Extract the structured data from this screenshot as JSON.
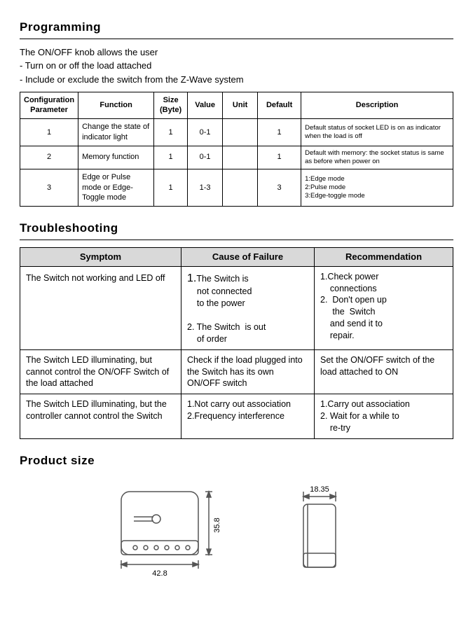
{
  "sections": {
    "programming": "Programming",
    "troubleshooting": "Troubleshooting",
    "product_size": "Product size"
  },
  "intro": {
    "line1": "The ON/OFF knob allows the user",
    "line2": "- Turn on or off the load attached",
    "line3": "- Include or exclude the switch from the Z-Wave system"
  },
  "cfg": {
    "headers": {
      "param": "Configuration Parameter",
      "function": "Function",
      "size": "Size (Byte)",
      "value": "Value",
      "unit": "Unit",
      "default": "Default",
      "description": "Description"
    },
    "rows": [
      {
        "param": "1",
        "function": "Change the state of indicator light",
        "size": "1",
        "value": "0-1",
        "unit": "",
        "default": "1",
        "description": "Default status of socket LED is on as indicator when the load is off"
      },
      {
        "param": "2",
        "function": "Memory function",
        "size": "1",
        "value": "0-1",
        "unit": "",
        "default": "1",
        "description": "Default with memory: the socket status is same as before when power on"
      },
      {
        "param": "3",
        "function": "Edge or Pulse mode or Edge-Toggle mode",
        "size": "1",
        "value": "1-3",
        "unit": "",
        "default": "3",
        "description": "1:Edge mode\n2:Pulse mode\n3:Edge-toggle mode"
      }
    ]
  },
  "trb": {
    "headers": {
      "symptom": "Symptom",
      "cause": "Cause of Failure",
      "rec": "Recommendation"
    },
    "rows": [
      {
        "symptom": "The  Switch  not working and LED off",
        "cause": "1. The Switch is not connected to the power\n\n2. The Switch  is out of order",
        "rec": "1. Check power connections\n2.  Don't open up the  Switch and send it to repair."
      },
      {
        "symptom": "The  Switch  LED illuminating, but cannot control the ON/OFF Switch of the load attached",
        "cause": "Check if the load plugged into the  Switch  has its own ON/OFF switch",
        "rec": "Set the ON/OFF switch of the load attached to ON"
      },
      {
        "symptom": "The  Switch  LED illuminating, but the controller cannot control the  Switch",
        "cause": "1.Not carry out association\n2.Frequency interference",
        "rec": "1.Carry out association\n2. Wait for a while to re-try"
      }
    ]
  },
  "dims": {
    "width": "42.8",
    "height": "35.8",
    "depth": "18.35"
  },
  "style": {
    "header_bg": "#d9d9d9",
    "border": "#000000",
    "text": "#000000",
    "drawing_stroke": "#555555"
  }
}
